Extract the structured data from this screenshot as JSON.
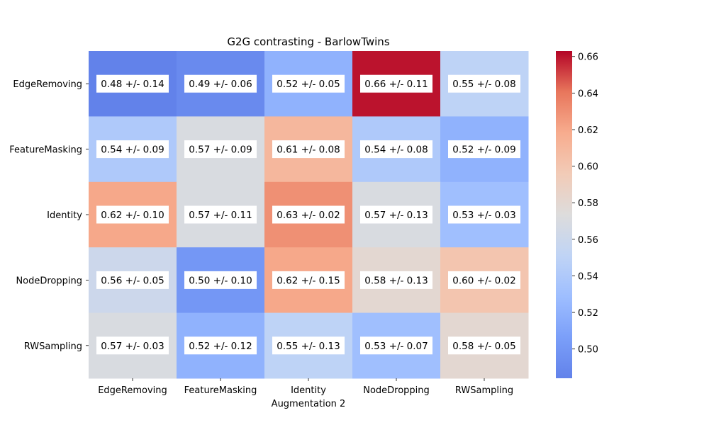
{
  "chart_data": {
    "type": "heatmap",
    "title": "G2G contrasting - BarlowTwins",
    "xlabel": "Augmentation 2",
    "ylabel": "",
    "x_categories": [
      "EdgeRemoving",
      "FeatureMasking",
      "Identity",
      "NodeDropping",
      "RWSampling"
    ],
    "y_categories": [
      "EdgeRemoving",
      "FeatureMasking",
      "Identity",
      "NodeDropping",
      "RWSampling"
    ],
    "values": [
      [
        0.48,
        0.49,
        0.52,
        0.66,
        0.55
      ],
      [
        0.54,
        0.57,
        0.61,
        0.54,
        0.52
      ],
      [
        0.62,
        0.57,
        0.63,
        0.57,
        0.53
      ],
      [
        0.56,
        0.5,
        0.62,
        0.58,
        0.6
      ],
      [
        0.57,
        0.52,
        0.55,
        0.53,
        0.58
      ]
    ],
    "annotations": [
      [
        "0.48 +/- 0.14",
        "0.49 +/- 0.06",
        "0.52 +/- 0.05",
        "0.66 +/- 0.11",
        "0.55 +/- 0.08"
      ],
      [
        "0.54 +/- 0.09",
        "0.57 +/- 0.09",
        "0.61 +/- 0.08",
        "0.54 +/- 0.08",
        "0.52 +/- 0.09"
      ],
      [
        "0.62 +/- 0.10",
        "0.57 +/- 0.11",
        "0.63 +/- 0.02",
        "0.57 +/- 0.13",
        "0.53 +/- 0.03"
      ],
      [
        "0.56 +/- 0.05",
        "0.50 +/- 0.10",
        "0.62 +/- 0.15",
        "0.58 +/- 0.13",
        "0.60 +/- 0.02"
      ],
      [
        "0.57 +/- 0.03",
        "0.52 +/- 0.12",
        "0.55 +/- 0.13",
        "0.53 +/- 0.07",
        "0.58 +/- 0.05"
      ]
    ],
    "colormap": "coolwarm",
    "colorbar": {
      "range": [
        0.484,
        0.663
      ],
      "ticks": [
        "0.50",
        "0.52",
        "0.54",
        "0.56",
        "0.58",
        "0.60",
        "0.62",
        "0.64",
        "0.66"
      ]
    },
    "grid": false,
    "legend": "colorbar-right"
  }
}
